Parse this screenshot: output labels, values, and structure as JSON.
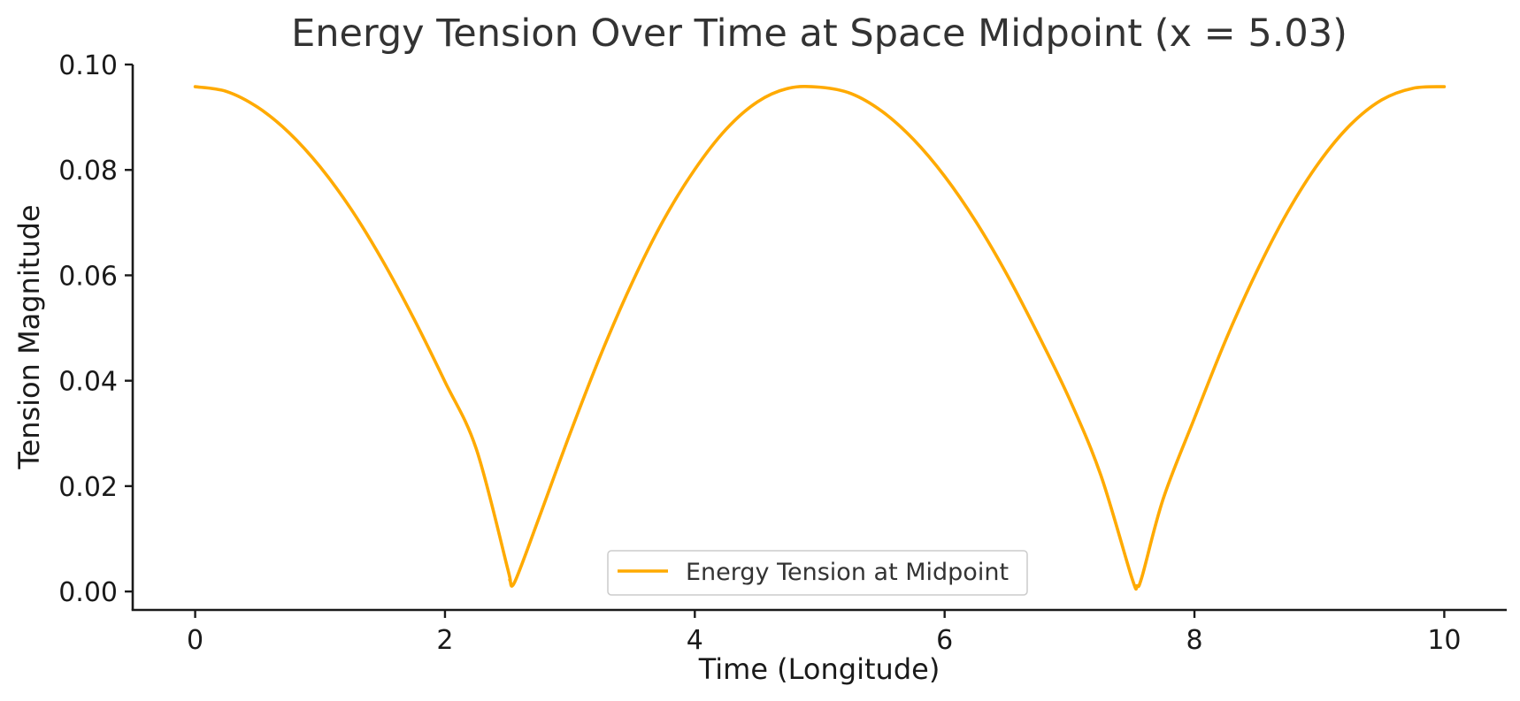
{
  "chart_data": {
    "type": "line",
    "title": "Energy Tension Over Time at Space Midpoint (x = 5.03)",
    "xlabel": "Time (Longitude)",
    "ylabel": "Tension Magnitude",
    "xlim": [
      -0.5,
      10.5
    ],
    "ylim": [
      -0.0035,
      0.1
    ],
    "xticks": [
      0,
      2,
      4,
      6,
      8,
      10
    ],
    "xtick_labels": [
      "0",
      "2",
      "4",
      "6",
      "8",
      "10"
    ],
    "yticks": [
      0.0,
      0.02,
      0.04,
      0.06,
      0.08,
      0.1
    ],
    "ytick_labels": [
      "0.00",
      "0.02",
      "0.04",
      "0.06",
      "0.08",
      "0.10"
    ],
    "grid": false,
    "legend_position": "bottom-center",
    "series": [
      {
        "name": "Energy Tension at Midpoint",
        "color": "#FFAA00",
        "x": [
          0.0,
          0.25,
          0.5,
          0.75,
          1.0,
          1.25,
          1.5,
          1.75,
          2.0,
          2.25,
          2.5,
          2.52,
          2.56,
          2.75,
          3.0,
          3.25,
          3.5,
          3.75,
          4.0,
          4.25,
          4.5,
          4.75,
          5.0,
          5.25,
          5.5,
          5.75,
          6.0,
          6.25,
          6.5,
          6.75,
          7.0,
          7.25,
          7.5,
          7.54,
          7.58,
          7.75,
          8.0,
          8.25,
          8.5,
          8.75,
          9.0,
          9.25,
          9.5,
          9.75,
          10.0
        ],
        "values": [
          0.0958,
          0.0949,
          0.0919,
          0.0871,
          0.0806,
          0.0725,
          0.0628,
          0.0518,
          0.0398,
          0.0271,
          0.0045,
          0.0022,
          0.0019,
          0.0138,
          0.0299,
          0.0451,
          0.0587,
          0.0705,
          0.0801,
          0.0877,
          0.0929,
          0.0955,
          0.0957,
          0.0945,
          0.0911,
          0.0858,
          0.0788,
          0.0702,
          0.0601,
          0.0487,
          0.0365,
          0.0221,
          0.0025,
          0.0011,
          0.0028,
          0.0176,
          0.0329,
          0.0477,
          0.0608,
          0.0722,
          0.0815,
          0.0886,
          0.0933,
          0.0955,
          0.0958
        ]
      }
    ]
  }
}
